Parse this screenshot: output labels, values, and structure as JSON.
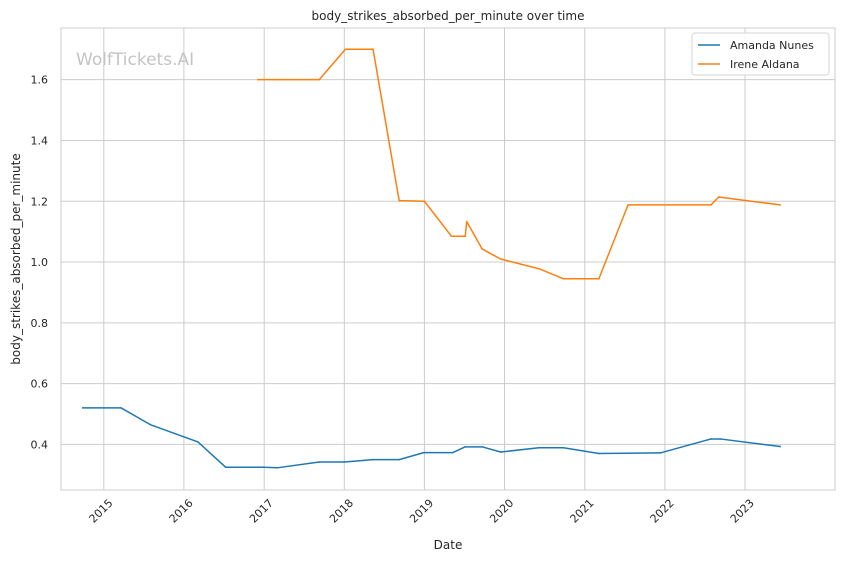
{
  "chart_data": {
    "type": "line",
    "title": "body_strikes_absorbed_per_minute over time",
    "xlabel": "Date",
    "ylabel": "body_strikes_absorbed_per_minute",
    "watermark": "WolfTickets.AI",
    "xlim": [
      "2014-06-20",
      "2024-02-15"
    ],
    "ylim": [
      0.25,
      1.77
    ],
    "x_ticks": [
      "2015-01-01",
      "2016-01-01",
      "2017-01-01",
      "2018-01-01",
      "2019-01-01",
      "2020-01-01",
      "2021-01-01",
      "2022-01-01",
      "2023-01-01"
    ],
    "x_tick_labels": [
      "2015",
      "2016",
      "2017",
      "2018",
      "2019",
      "2020",
      "2021",
      "2022",
      "2023"
    ],
    "y_ticks": [
      0.4,
      0.6,
      0.8,
      1.0,
      1.2,
      1.4,
      1.6
    ],
    "y_tick_labels": [
      "0.4",
      "0.6",
      "0.8",
      "1.0",
      "1.2",
      "1.4",
      "1.6"
    ],
    "grid": true,
    "legend_position": "top-right",
    "series": [
      {
        "name": "Amanda Nunes",
        "color": "#1f77b4",
        "points": [
          [
            "2014-09-27",
            0.52
          ],
          [
            "2015-03-21",
            0.52
          ],
          [
            "2015-08-01",
            0.465
          ],
          [
            "2016-03-05",
            0.408
          ],
          [
            "2016-07-09",
            0.325
          ],
          [
            "2016-12-30",
            0.325
          ],
          [
            "2017-03-01",
            0.323
          ],
          [
            "2017-09-09",
            0.342
          ],
          [
            "2018-01-01",
            0.342
          ],
          [
            "2018-05-12",
            0.35
          ],
          [
            "2018-09-08",
            0.35
          ],
          [
            "2018-12-29",
            0.373
          ],
          [
            "2019-05-11",
            0.373
          ],
          [
            "2019-07-06",
            0.392
          ],
          [
            "2019-09-21",
            0.392
          ],
          [
            "2019-12-14",
            0.375
          ],
          [
            "2020-06-06",
            0.389
          ],
          [
            "2020-09-26",
            0.389
          ],
          [
            "2021-03-06",
            0.37
          ],
          [
            "2021-12-11",
            0.372
          ],
          [
            "2022-07-30",
            0.418
          ],
          [
            "2022-09-10",
            0.418
          ],
          [
            "2023-06-10",
            0.393
          ]
        ]
      },
      {
        "name": "Irene Aldana",
        "color": "#ff7f0e",
        "points": [
          [
            "2016-12-03",
            1.6
          ],
          [
            "2017-09-09",
            1.6
          ],
          [
            "2018-01-06",
            1.7
          ],
          [
            "2018-05-12",
            1.7
          ],
          [
            "2018-09-08",
            1.202
          ],
          [
            "2019-01-01",
            1.2
          ],
          [
            "2019-05-04",
            1.085
          ],
          [
            "2019-07-06",
            1.085
          ],
          [
            "2019-07-13",
            1.133
          ],
          [
            "2019-09-21",
            1.043
          ],
          [
            "2019-12-14",
            1.01
          ],
          [
            "2020-06-06",
            0.978
          ],
          [
            "2020-09-26",
            0.945
          ],
          [
            "2021-03-06",
            0.945
          ],
          [
            "2021-07-17",
            1.188
          ],
          [
            "2022-07-30",
            1.188
          ],
          [
            "2022-09-03",
            1.214
          ],
          [
            "2023-06-10",
            1.188
          ]
        ]
      }
    ]
  }
}
